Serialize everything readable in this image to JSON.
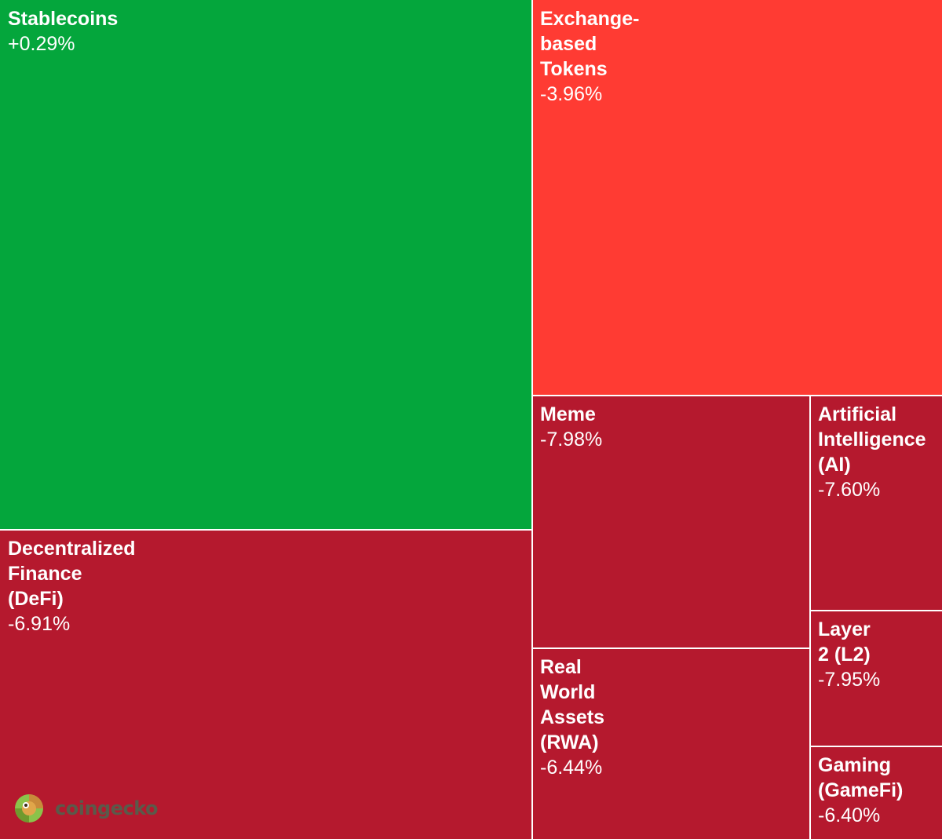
{
  "chart_data": {
    "type": "treemap",
    "colors": {
      "positive": "#04a63c",
      "moderate_negative": "#ff3b33",
      "strong_negative": "#b5192e"
    },
    "items": [
      {
        "label": "Stablecoins",
        "change": "+0.29%",
        "value_pct": 0.29,
        "color": "#04a63c"
      },
      {
        "label": "Exchange-\nbased\nTokens",
        "change": "-3.96%",
        "value_pct": -3.96,
        "color": "#ff3b33"
      },
      {
        "label": "Decentralized\nFinance\n(DeFi)",
        "change": "-6.91%",
        "value_pct": -6.91,
        "color": "#b5192e"
      },
      {
        "label": "Meme",
        "change": "-7.98%",
        "value_pct": -7.98,
        "color": "#b5192e"
      },
      {
        "label": "Artificial\nIntelligence\n(AI)",
        "change": "-7.60%",
        "value_pct": -7.6,
        "color": "#b5192e"
      },
      {
        "label": "Real\nWorld\nAssets\n(RWA)",
        "change": "-6.44%",
        "value_pct": -6.44,
        "color": "#b5192e"
      },
      {
        "label": "Layer\n2 (L2)",
        "change": "-7.95%",
        "value_pct": -7.95,
        "color": "#b5192e"
      },
      {
        "label": "Gaming\n(GameFi)",
        "change": "-6.40%",
        "value_pct": -6.4,
        "color": "#b5192e"
      }
    ]
  },
  "watermark": {
    "brand": "coingecko",
    "icon": "gecko-logo-icon"
  }
}
